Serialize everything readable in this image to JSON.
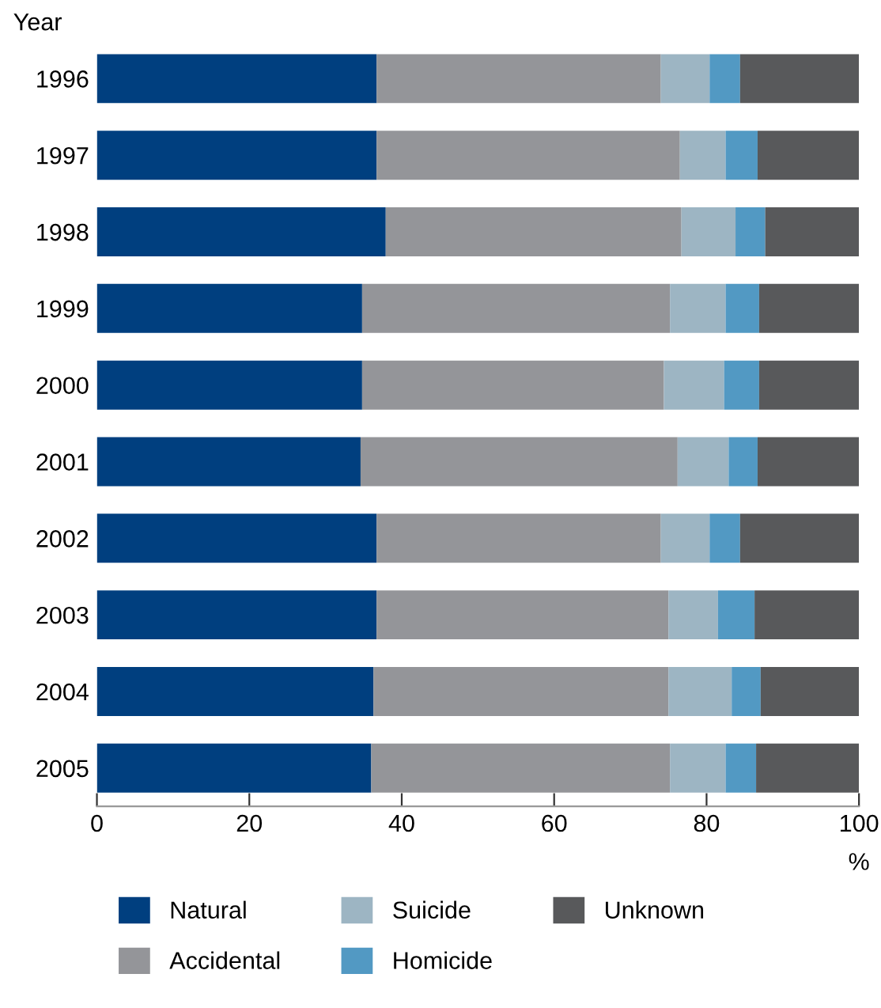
{
  "chart_data": {
    "type": "bar",
    "orientation": "horizontal",
    "stacked": true,
    "ylabel": "Year",
    "xlabel": "%",
    "categories": [
      "1996",
      "1997",
      "1998",
      "1999",
      "2000",
      "2001",
      "2002",
      "2003",
      "2004",
      "2005"
    ],
    "series": [
      {
        "name": "Natural",
        "color": "#003f7f",
        "values": [
          36.7,
          36.7,
          37.9,
          34.8,
          34.8,
          34.6,
          36.7,
          36.7,
          36.3,
          36.0
        ]
      },
      {
        "name": "Accidental",
        "color": "#949599",
        "values": [
          37.3,
          39.8,
          38.8,
          40.4,
          39.6,
          41.6,
          37.3,
          38.3,
          38.7,
          39.2
        ]
      },
      {
        "name": "Suicide",
        "color": "#9db5c3",
        "values": [
          6.4,
          6.0,
          7.1,
          7.3,
          7.9,
          6.7,
          6.4,
          6.5,
          8.3,
          7.3
        ]
      },
      {
        "name": "Homicide",
        "color": "#5299c3",
        "values": [
          4.0,
          4.2,
          3.9,
          4.4,
          4.6,
          3.8,
          4.0,
          4.8,
          3.8,
          4.0
        ]
      },
      {
        "name": "Unknown",
        "color": "#58595b",
        "values": [
          15.6,
          13.3,
          12.3,
          13.1,
          13.1,
          13.3,
          15.6,
          13.7,
          12.9,
          13.5
        ]
      }
    ],
    "xlim": [
      0,
      100
    ],
    "xticks": [
      0,
      20,
      40,
      60,
      80,
      100
    ],
    "grid": false,
    "legend": "bottom"
  }
}
